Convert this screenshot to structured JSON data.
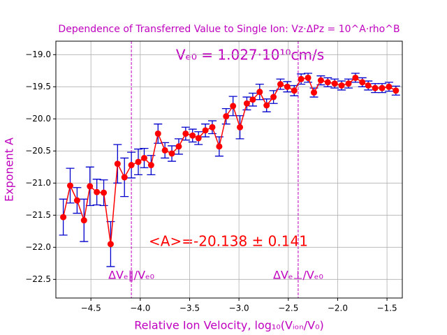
{
  "chart_data": {
    "type": "errorbar",
    "title": "Dependence of Transferred Value to Single Ion: Vz·ΔPz = 10^A·rho^B",
    "x_label": "Relative Ion Velocity, log₁₀(Vᵢₒₙ/V₀)",
    "y_label": "Exponent A",
    "annotations": [
      "Vₑ₀ = 1.027·10¹⁰cm/s",
      "<A>=-20.138 ± 0.141"
    ],
    "vlines": [
      {
        "x": -4.09,
        "label": "ΔVₑ‖/Vₑ₀"
      },
      {
        "x": -2.4,
        "label": "ΔVₑ⊥/Vₑ₀"
      }
    ],
    "vline_color": "#bf00bf",
    "grid": true,
    "xlim": [
      -4.855,
      -1.345
    ],
    "ylim": [
      -22.79,
      -18.79
    ],
    "xticks": [
      {
        "value": -4.5,
        "label": "−4.5"
      },
      {
        "value": -4.0,
        "label": "−4.0"
      },
      {
        "value": -3.5,
        "label": "−3.5"
      },
      {
        "value": -3.0,
        "label": "−3.0"
      },
      {
        "value": -2.5,
        "label": "−2.5"
      },
      {
        "value": -2.0,
        "label": "−2.0"
      },
      {
        "value": -1.5,
        "label": "−1.5"
      }
    ],
    "yticks": [
      {
        "value": -19.0,
        "label": "−19.0"
      },
      {
        "value": -19.5,
        "label": "−19.5"
      },
      {
        "value": -20.0,
        "label": "−20.0"
      },
      {
        "value": -20.5,
        "label": "−20.5"
      },
      {
        "value": -21.0,
        "label": "−21.0"
      },
      {
        "value": -21.5,
        "label": "−21.5"
      },
      {
        "value": -22.0,
        "label": "−22.0"
      },
      {
        "value": -22.5,
        "label": "−22.5"
      }
    ],
    "x": [
      -4.78,
      -4.71,
      -4.64,
      -4.57,
      -4.51,
      -4.44,
      -4.37,
      -4.3,
      -4.23,
      -4.16,
      -4.09,
      -4.02,
      -3.96,
      -3.89,
      -3.82,
      -3.75,
      -3.68,
      -3.61,
      -3.54,
      -3.47,
      -3.41,
      -3.34,
      -3.27,
      -3.2,
      -3.13,
      -3.06,
      -2.99,
      -2.92,
      -2.86,
      -2.79,
      -2.72,
      -2.65,
      -2.58,
      -2.51,
      -2.44,
      -2.37,
      -2.3,
      -2.24,
      -2.17,
      -2.1,
      -2.03,
      -1.96,
      -1.89,
      -1.82,
      -1.75,
      -1.69,
      -1.62,
      -1.55,
      -1.48,
      -1.41
    ],
    "series": [
      {
        "color": "#ff0000",
        "error_color": "#0000cc",
        "values": [
          -21.53,
          -21.04,
          -21.27,
          -21.58,
          -21.05,
          -21.14,
          -21.15,
          -21.95,
          -20.7,
          -20.91,
          -20.72,
          -20.67,
          -20.61,
          -20.72,
          -20.23,
          -20.49,
          -20.54,
          -20.43,
          -20.23,
          -20.26,
          -20.3,
          -20.18,
          -20.13,
          -20.43,
          -19.96,
          -19.8,
          -20.13,
          -19.76,
          -19.7,
          -19.58,
          -19.79,
          -19.66,
          -19.46,
          -19.5,
          -19.56,
          -19.38,
          -19.36,
          -19.59,
          -19.4,
          -19.43,
          -19.45,
          -19.48,
          -19.45,
          -19.36,
          -19.43,
          -19.48,
          -19.52,
          -19.52,
          -19.5,
          -19.56
        ],
        "errors": [
          0.28,
          0.27,
          0.2,
          0.33,
          0.3,
          0.2,
          0.2,
          0.35,
          0.3,
          0.3,
          0.2,
          0.2,
          0.15,
          0.15,
          0.15,
          0.12,
          0.12,
          0.12,
          0.1,
          0.1,
          0.1,
          0.1,
          0.1,
          0.15,
          0.12,
          0.15,
          0.18,
          0.1,
          0.1,
          0.12,
          0.1,
          0.1,
          0.08,
          0.08,
          0.08,
          0.08,
          0.07,
          0.07,
          0.07,
          0.07,
          0.07,
          0.07,
          0.07,
          0.07,
          0.07,
          0.07,
          0.07,
          0.07,
          0.07,
          0.07
        ]
      }
    ]
  }
}
